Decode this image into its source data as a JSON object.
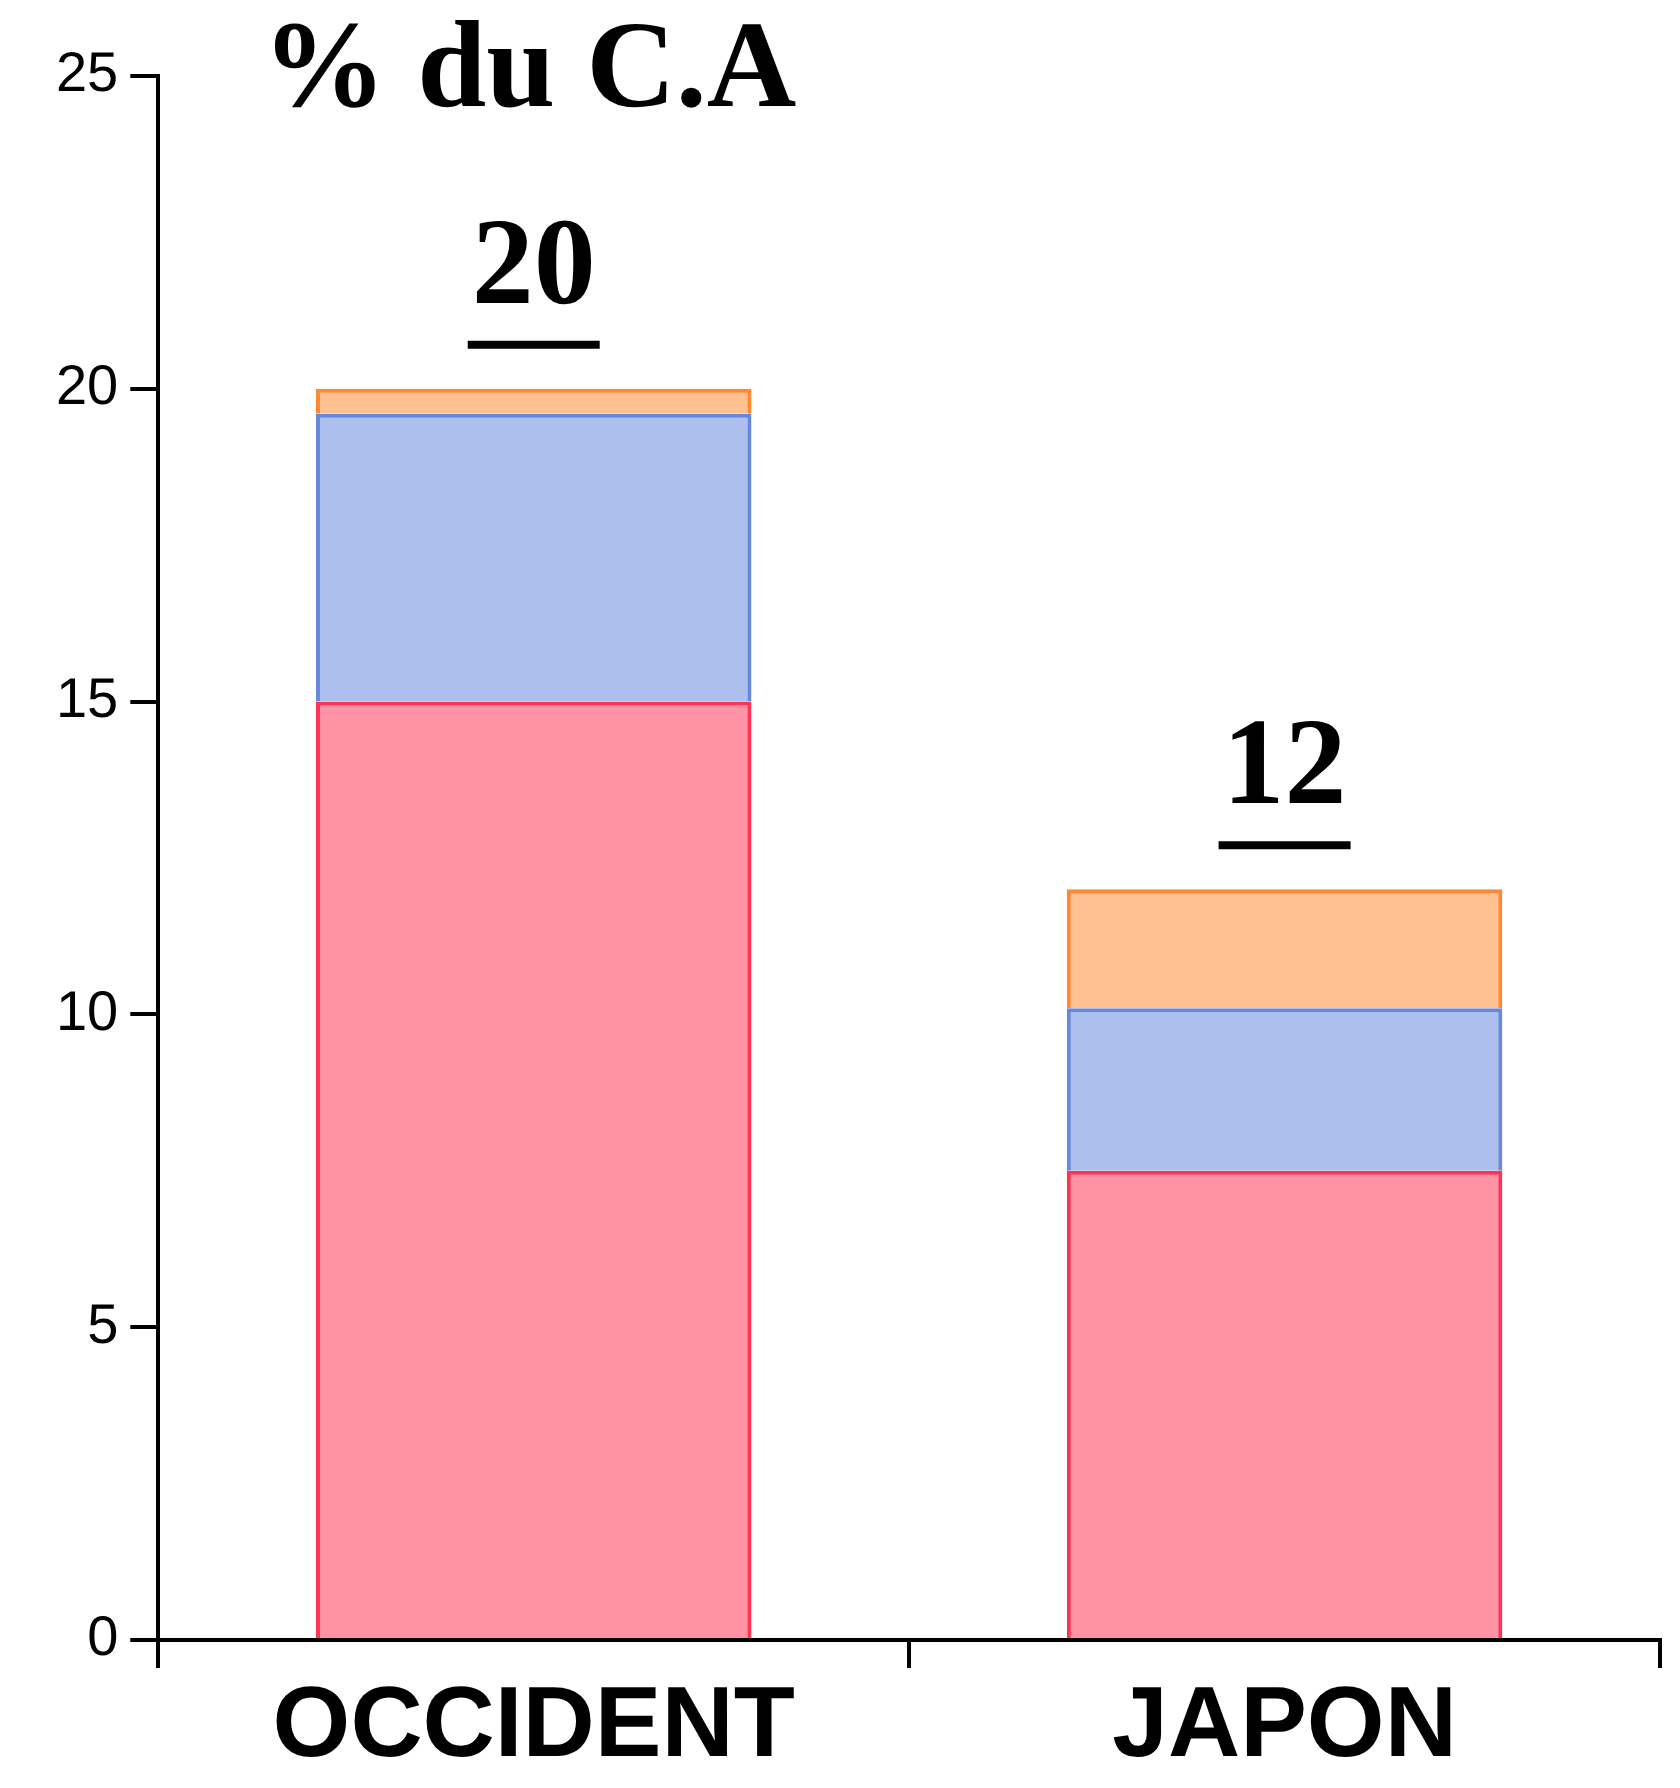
{
  "chart_data": {
    "type": "bar",
    "title": "% du C.A",
    "categories": [
      "OCCIDENT",
      "JAPON"
    ],
    "stacked": true,
    "series": [
      {
        "color": "#ff3355",
        "values": [
          15,
          7.5
        ]
      },
      {
        "color": "#6688dd",
        "values": [
          4.6,
          2.6
        ]
      },
      {
        "color": "#ff8833",
        "values": [
          0.4,
          1.9
        ]
      }
    ],
    "totals": [
      "20",
      "12"
    ],
    "ylim": [
      0,
      25
    ],
    "yticks": [
      0,
      5,
      10,
      15,
      20,
      25
    ],
    "grid": false,
    "legend": false
  }
}
